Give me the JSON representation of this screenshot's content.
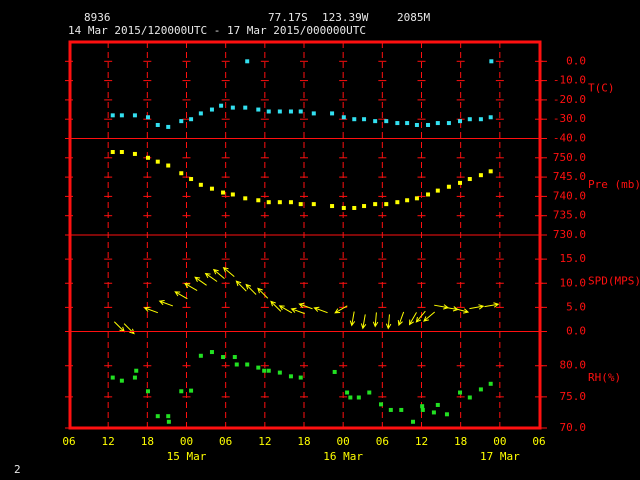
{
  "header": {
    "station": "8936",
    "lat": "77.17S",
    "lon": "123.39W",
    "elev": "2085M",
    "period": "14 Mar 2015/120000UTC - 17 Mar 2015/000000UTC",
    "page": "2"
  },
  "chart_data": [
    {
      "type": "scatter",
      "label": "T(C)",
      "color": "#33e0f0",
      "x": [
        12.7,
        14.1,
        16.1,
        18.1,
        19.6,
        21.2,
        23.2,
        24.7,
        26.2,
        27.9,
        29.3,
        31.1,
        33.0,
        33.3,
        35.0,
        36.6,
        38.3,
        40.0,
        41.5,
        43.5,
        46.3,
        48.1,
        49.7,
        51.2,
        52.9,
        54.6,
        56.3,
        57.8,
        59.3,
        61.0,
        62.5,
        64.2,
        65.9,
        67.4,
        69.1,
        70.6,
        70.7
      ],
      "values": [
        -28,
        -28,
        -28,
        -29,
        -33,
        -34,
        -31,
        -30,
        -27,
        -25,
        -23,
        -24,
        -24,
        0,
        -25,
        -26,
        -26,
        -26,
        -26,
        -27,
        -27,
        -29,
        -30,
        -30,
        -31,
        -31,
        -32,
        -32,
        -33,
        -33,
        -32,
        -32,
        -31,
        -30,
        -30,
        -29,
        0
      ],
      "ylim": [
        -40,
        10
      ],
      "yticks": [
        {
          "value": 0,
          "label": "0.0"
        },
        {
          "value": -10,
          "label": "-10.0"
        },
        {
          "value": -20,
          "label": "-20.0"
        },
        {
          "value": -30,
          "label": "-30.0"
        },
        {
          "value": -40,
          "label": "-40.0"
        }
      ]
    },
    {
      "type": "scatter",
      "label": "Pre (mb)",
      "color": "#ffff00",
      "x": [
        12.7,
        14.1,
        16.1,
        18.1,
        19.6,
        21.2,
        23.2,
        24.7,
        26.2,
        27.9,
        29.6,
        31.1,
        33.0,
        35.0,
        36.6,
        38.3,
        40.0,
        41.5,
        43.5,
        46.3,
        48.1,
        49.7,
        51.2,
        52.9,
        54.6,
        56.3,
        57.8,
        59.3,
        61.0,
        62.5,
        64.2,
        65.9,
        67.4,
        69.1,
        70.6
      ],
      "values": [
        751.5,
        751.5,
        751,
        750,
        749,
        748,
        746,
        744.5,
        743,
        742,
        741,
        740.5,
        739.5,
        739,
        738.5,
        738.5,
        738.5,
        738,
        738,
        737.5,
        737,
        737,
        737.5,
        738,
        738,
        738.5,
        739,
        739.5,
        740.5,
        741.5,
        742.5,
        743.5,
        744.5,
        745.5,
        746.5
      ],
      "ylim": [
        730,
        755
      ],
      "yticks": [
        {
          "value": 750,
          "label": "750.0"
        },
        {
          "value": 745,
          "label": "745.0"
        },
        {
          "value": 740,
          "label": "740.0"
        },
        {
          "value": 735,
          "label": "735.0"
        },
        {
          "value": 730,
          "label": "730.0"
        }
      ]
    },
    {
      "type": "vector",
      "label": "SPD(MPS)",
      "color": "#ffff00",
      "x": [
        13.7,
        15.2,
        18.6,
        20.9,
        23.2,
        24.7,
        26.2,
        27.8,
        29.0,
        30.5,
        32.4,
        33.9,
        35.7,
        37.7,
        39.2,
        41.1,
        42.3,
        44.6,
        47.7,
        49.5,
        51.2,
        53.0,
        55.0,
        56.9,
        58.7,
        59.9,
        61.2,
        63.0,
        64.5,
        66.1,
        68.4,
        70.7
      ],
      "values": [
        1.0,
        0.6,
        4.4,
        5.8,
        7.5,
        9.2,
        10.4,
        11.2,
        11.9,
        12.3,
        9.4,
        8.7,
        7.9,
        5.2,
        4.6,
        4.2,
        5.2,
        4.4,
        4.6,
        2.7,
        2.1,
        2.5,
        2.1,
        2.7,
        2.7,
        3.1,
        3.1,
        5.2,
        4.8,
        4.4,
        5.0,
        5.4
      ],
      "directions": [
        45,
        45,
        200,
        200,
        210,
        210,
        215,
        215,
        220,
        220,
        225,
        225,
        225,
        225,
        210,
        200,
        200,
        200,
        150,
        100,
        100,
        95,
        95,
        110,
        120,
        130,
        140,
        10,
        10,
        15,
        350,
        350
      ],
      "ylim": [
        0,
        20
      ],
      "yticks": [
        {
          "value": 15,
          "label": "15.0"
        },
        {
          "value": 10,
          "label": "10.0"
        },
        {
          "value": 5,
          "label": "5.0"
        },
        {
          "value": 0,
          "label": "0.0"
        }
      ]
    },
    {
      "type": "scatter",
      "label": "RH(%)",
      "color": "#22e022",
      "x": [
        12.7,
        14.1,
        16.1,
        16.3,
        18.1,
        19.6,
        21.2,
        21.3,
        23.2,
        24.7,
        26.2,
        27.9,
        29.6,
        31.4,
        31.7,
        33.3,
        35.0,
        35.9,
        36.6,
        38.3,
        40.0,
        41.5,
        46.7,
        48.6,
        49.1,
        50.4,
        52.0,
        53.8,
        55.3,
        56.9,
        58.7,
        60.1,
        60.2,
        61.9,
        62.5,
        63.9,
        65.9,
        67.4,
        69.1,
        70.6
      ],
      "values": [
        78.1,
        77.6,
        78.1,
        79.2,
        75.9,
        71.9,
        71.9,
        71.0,
        75.9,
        76.0,
        81.6,
        82.2,
        81.4,
        81.4,
        80.2,
        80.2,
        79.7,
        79.2,
        79.2,
        78.9,
        78.3,
        78.1,
        79.0,
        75.7,
        74.9,
        74.9,
        75.7,
        73.8,
        72.9,
        72.9,
        71.0,
        73.5,
        72.9,
        72.5,
        73.7,
        72.2,
        75.7,
        74.9,
        76.2,
        77.1
      ],
      "ylim": [
        70,
        85.5
      ],
      "yticks": [
        {
          "value": 80,
          "label": "80.0"
        },
        {
          "value": 75,
          "label": "75.0"
        },
        {
          "value": 70,
          "label": "70.0"
        }
      ],
      "xlim": [
        6,
        78
      ],
      "xticks": [
        {
          "value": 6,
          "label": "06"
        },
        {
          "value": 12,
          "label": "12"
        },
        {
          "value": 18,
          "label": "18"
        },
        {
          "value": 24,
          "label": "00"
        },
        {
          "value": 30,
          "label": "06"
        },
        {
          "value": 36,
          "label": "12"
        },
        {
          "value": 42,
          "label": "18"
        },
        {
          "value": 48,
          "label": "00"
        },
        {
          "value": 54,
          "label": "06"
        },
        {
          "value": 60,
          "label": "12"
        },
        {
          "value": 66,
          "label": "18"
        },
        {
          "value": 72,
          "label": "00"
        },
        {
          "value": 78,
          "label": "06"
        }
      ],
      "date_labels": [
        {
          "value": 24,
          "label": "15 Mar"
        },
        {
          "value": 48,
          "label": "16 Mar"
        },
        {
          "value": 72,
          "label": "17 Mar"
        }
      ]
    }
  ]
}
